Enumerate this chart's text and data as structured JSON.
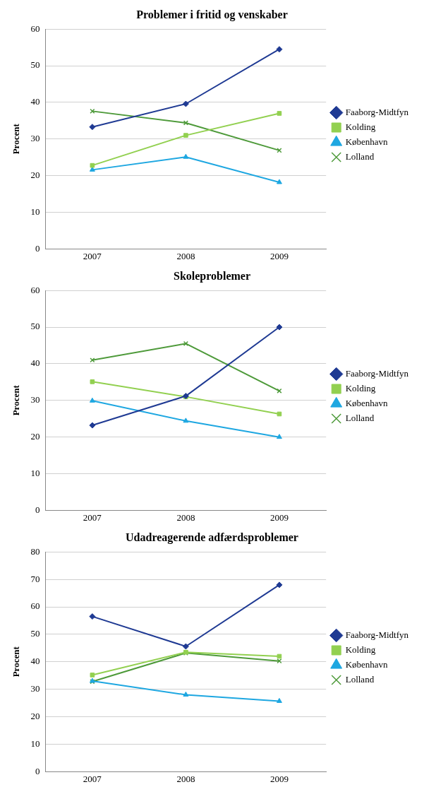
{
  "chart_data": [
    {
      "type": "line",
      "title": "Problemer i fritid og venskaber",
      "ylabel": "Procent",
      "categories": [
        "2007",
        "2008",
        "2009"
      ],
      "ylim": [
        0,
        60
      ],
      "yticks": [
        0,
        10,
        20,
        30,
        40,
        50,
        60
      ],
      "grid": "y",
      "legend": "right",
      "line_style": "solid",
      "series": [
        {
          "name": "Faaborg-Midtfyn",
          "color": "#1f3a93",
          "marker": "diamond",
          "values": [
            33.3,
            39.6,
            54.5
          ]
        },
        {
          "name": "Kolding",
          "color": "#92d050",
          "marker": "square",
          "values": [
            22.8,
            31.0,
            37.0
          ]
        },
        {
          "name": "København",
          "color": "#1ea7e1",
          "marker": "triangle",
          "values": [
            21.6,
            25.1,
            18.2
          ]
        },
        {
          "name": "Lolland",
          "color": "#4e9a3a",
          "marker": "cross",
          "values": [
            37.6,
            34.4,
            26.9
          ]
        }
      ]
    },
    {
      "type": "line",
      "title": "Skoleproblemer",
      "ylabel": "Procent",
      "categories": [
        "2007",
        "2008",
        "2009"
      ],
      "ylim": [
        0,
        60
      ],
      "yticks": [
        0,
        10,
        20,
        30,
        40,
        50,
        60
      ],
      "grid": "y",
      "legend": "right",
      "line_style": "solid",
      "series": [
        {
          "name": "Faaborg-Midtfyn",
          "color": "#1f3a93",
          "marker": "diamond",
          "values": [
            23.2,
            31.2,
            50.0
          ]
        },
        {
          "name": "Kolding",
          "color": "#92d050",
          "marker": "square",
          "values": [
            35.1,
            31.0,
            26.3
          ]
        },
        {
          "name": "København",
          "color": "#1ea7e1",
          "marker": "triangle",
          "values": [
            29.9,
            24.4,
            20.0
          ]
        },
        {
          "name": "Lolland",
          "color": "#4e9a3a",
          "marker": "cross",
          "values": [
            41.0,
            45.5,
            32.6
          ]
        }
      ]
    },
    {
      "type": "line",
      "title": "Udadreagerende adfærdsproblemer",
      "ylabel": "Procent",
      "categories": [
        "2007",
        "2008",
        "2009"
      ],
      "ylim": [
        0,
        80
      ],
      "yticks": [
        0,
        10,
        20,
        30,
        40,
        50,
        60,
        70,
        80
      ],
      "grid": "y",
      "legend": "right",
      "line_style": "solid",
      "series": [
        {
          "name": "Faaborg-Midtfyn",
          "color": "#1f3a93",
          "marker": "diamond",
          "values": [
            56.5,
            45.6,
            68.0
          ]
        },
        {
          "name": "Kolding",
          "color": "#92d050",
          "marker": "square",
          "values": [
            35.2,
            43.5,
            42.0
          ]
        },
        {
          "name": "København",
          "color": "#1ea7e1",
          "marker": "triangle",
          "values": [
            33.0,
            28.0,
            25.7
          ]
        },
        {
          "name": "Lolland",
          "color": "#4e9a3a",
          "marker": "cross",
          "values": [
            32.8,
            43.2,
            40.3
          ]
        }
      ]
    }
  ]
}
